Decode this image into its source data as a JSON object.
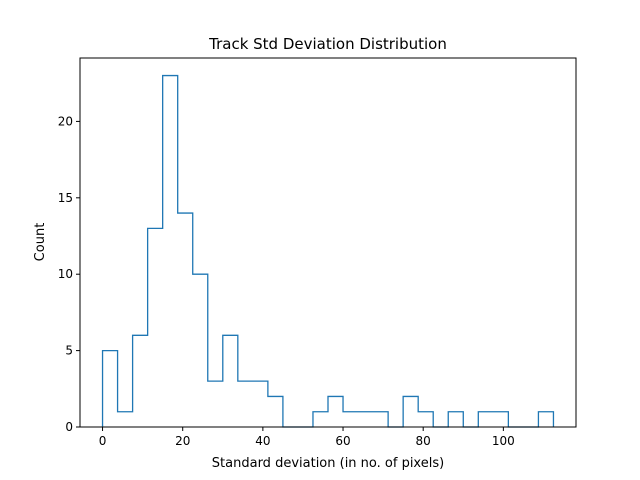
{
  "chart_data": {
    "type": "bar",
    "histtype": "step",
    "title": "Track Std Deviation Distribution",
    "xlabel": "Standard deviation (in no. of pixels)",
    "ylabel": "Count",
    "bin_edges": [
      0,
      3.75,
      7.5,
      11.25,
      15,
      18.75,
      22.5,
      26.25,
      30,
      33.75,
      37.5,
      41.25,
      45,
      48.75,
      52.5,
      56.25,
      60,
      63.75,
      67.5,
      71.25,
      75,
      78.75,
      82.5,
      86.25,
      90,
      93.75,
      97.5,
      101.25,
      105,
      108.75,
      112.5
    ],
    "values": [
      5,
      1,
      6,
      13,
      23,
      14,
      10,
      3,
      6,
      3,
      3,
      2,
      0,
      0,
      1,
      2,
      1,
      1,
      1,
      0,
      2,
      1,
      0,
      1,
      0,
      1,
      1,
      0,
      0,
      1
    ],
    "xlim": [
      -5.625,
      118.125
    ],
    "ylim": [
      0,
      24.15
    ],
    "xticks": [
      0,
      20,
      40,
      60,
      80,
      100
    ],
    "yticks": [
      0,
      5,
      10,
      15,
      20
    ],
    "grid": false,
    "line_color": "#1f77b4"
  }
}
